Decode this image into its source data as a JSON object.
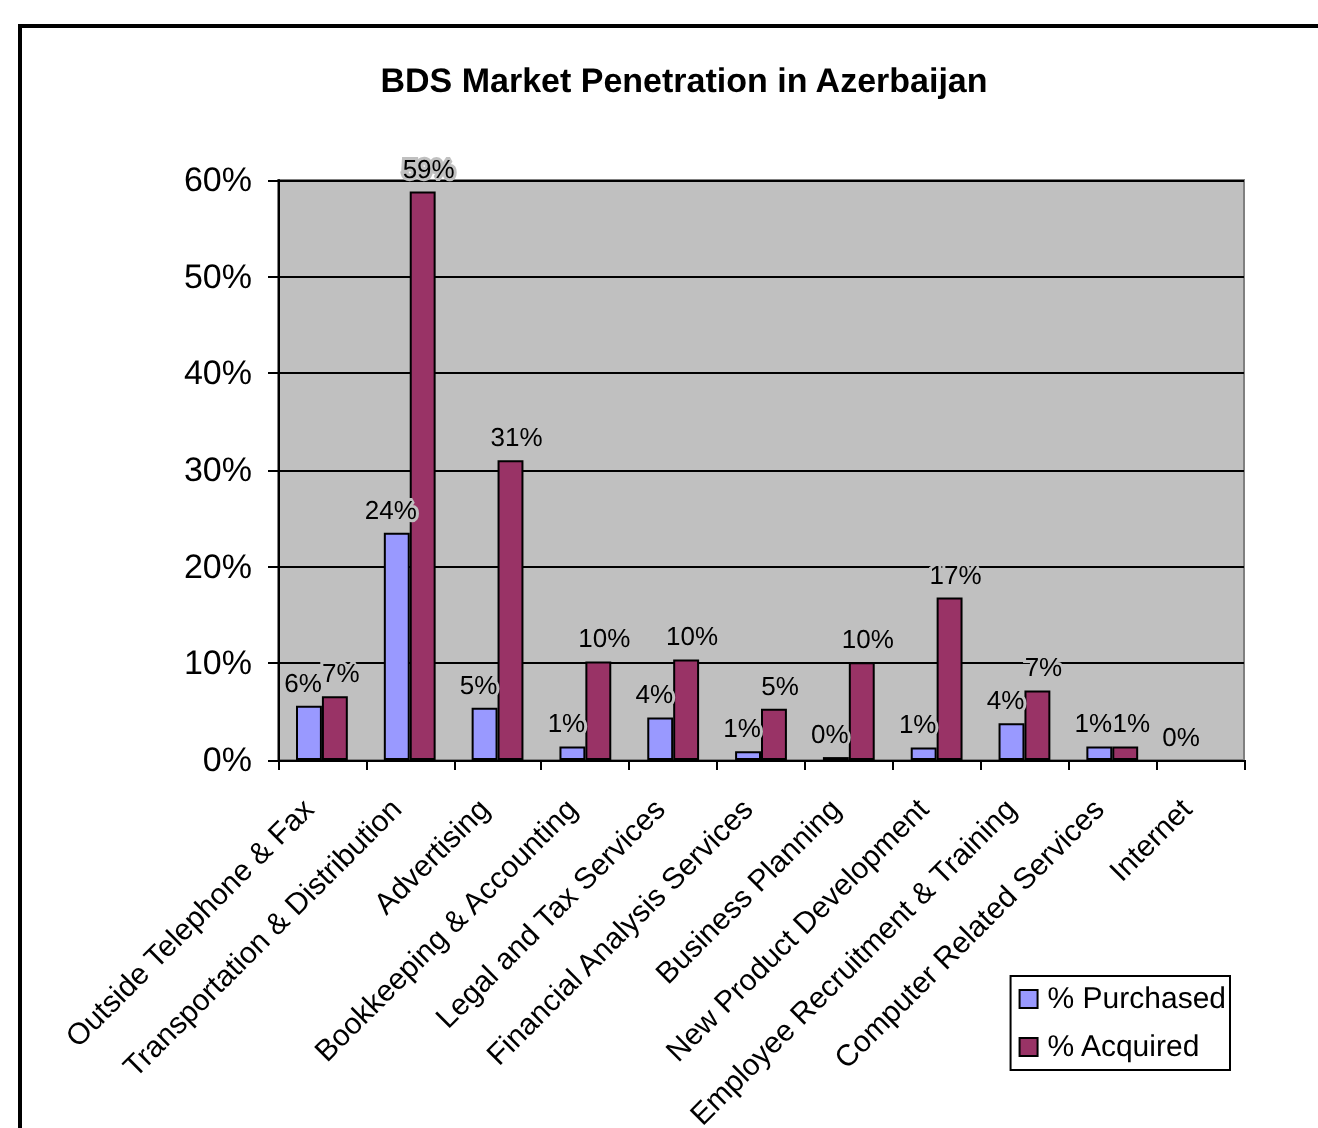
{
  "chart_data": {
    "type": "bar",
    "title": "BDS Market Penetration in Azerbaijan",
    "categories": [
      "Outside Telephone & Fax",
      "Transportation & Distribution",
      "Advertising",
      "Bookkeeping & Accounting",
      "Legal and Tax Services",
      "Financial Analysis Services",
      "Business Planning",
      "New Product Development",
      "Employee Recruitment & Training",
      "Computer Related Services",
      "Internet"
    ],
    "series": [
      {
        "name": "% Purchased",
        "color": "#9999ff",
        "values": [
          5.6,
          23.5,
          5.4,
          1.4,
          4.4,
          0.9,
          0.3,
          1.3,
          3.8,
          1.4,
          0
        ],
        "value_labels": [
          "6%",
          "24%",
          "5%",
          "1%",
          "4%",
          "1%",
          "0%",
          "1%",
          "4%",
          "1%",
          "0%"
        ]
      },
      {
        "name": "% Acquired",
        "color": "#993366",
        "values": [
          6.6,
          58.8,
          31.0,
          10.2,
          10.4,
          5.3,
          10.1,
          16.8,
          7.2,
          1.4,
          null
        ],
        "value_labels": [
          "7%",
          "59%",
          "31%",
          "10%",
          "10%",
          "5%",
          "10%",
          "17%",
          "7%",
          "1%",
          null
        ]
      }
    ],
    "ylim": [
      0,
      60
    ],
    "yticks": [
      {
        "value": 0,
        "label": "0%"
      },
      {
        "value": 10,
        "label": "10%"
      },
      {
        "value": 20,
        "label": "20%"
      },
      {
        "value": 30,
        "label": "30%"
      },
      {
        "value": 40,
        "label": "40%"
      },
      {
        "value": 50,
        "label": "50%"
      },
      {
        "value": 60,
        "label": "60%"
      }
    ],
    "grid": "y",
    "legend": "bottom right"
  }
}
